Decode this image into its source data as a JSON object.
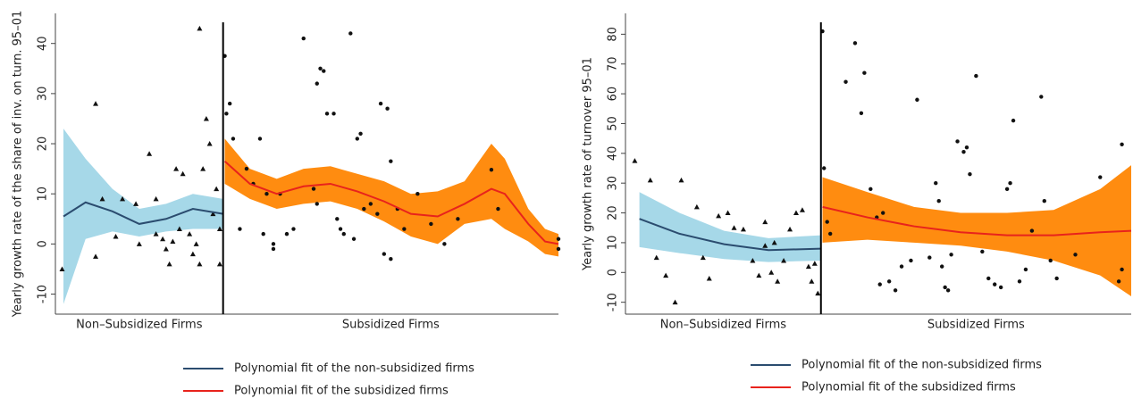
{
  "chart_data": [
    {
      "type": "scatter",
      "ylabel": "Yearly growth rate of the share of inv. on turn. 95–01",
      "xlim": [
        -50,
        100
      ],
      "ylim": [
        -14,
        46
      ],
      "yticks": [
        -10,
        0,
        10,
        20,
        30,
        40
      ],
      "cutoff": 0,
      "groups": [
        {
          "label": "Non–Subsidized Firms",
          "marker": "triangle",
          "points": {
            "x": [
              -48,
              -38,
              -36,
              -30,
              -26,
              -22,
              -38,
              -32,
              -25,
              -20,
              -18,
              -17,
              -16,
              -14,
              -12,
              -10,
              -8,
              -7,
              -9,
              -5,
              -6,
              -4,
              -3,
              -7,
              -2,
              -1,
              -1,
              -13,
              -15,
              -20
            ],
            "y": [
              -5,
              28,
              9,
              9,
              8,
              18,
              -2.5,
              1.5,
              0,
              2,
              1,
              -1,
              -4,
              15,
              14,
              2,
              0,
              -4,
              -2,
              25,
              15,
              20,
              6,
              43,
              11,
              3,
              -4,
              3,
              0.5,
              9
            ]
          },
          "fit": {
            "name": "Polynomial fit of the non-subsidized firms",
            "color": "#2b4c6f",
            "band_color": "#a6d8e8",
            "x": [
              -47.6,
              -41,
              -33,
              -25,
              -17,
              -9,
              0
            ],
            "values": [
              5.5,
              8.3,
              6.5,
              4,
              5,
              7,
              6
            ],
            "lower": [
              -12,
              1,
              2.5,
              1.5,
              2.5,
              3,
              3
            ],
            "upper": [
              23,
              17,
              11,
              7,
              8,
              10,
              9
            ]
          }
        },
        {
          "label": "Subsidized Firms",
          "marker": "dot",
          "points": {
            "x": [
              0.5,
              1,
              2,
              3,
              5,
              7,
              9,
              11,
              13,
              12,
              15,
              15,
              17,
              19,
              21,
              24,
              27,
              28,
              29,
              28,
              30,
              31,
              33,
              34,
              35,
              36,
              38,
              39,
              40,
              41,
              42,
              44,
              46,
              47,
              49,
              48,
              50,
              50,
              54,
              52,
              58,
              62,
              66,
              70,
              80,
              82,
              100,
              100
            ],
            "y": [
              37.5,
              26,
              28,
              21,
              3,
              15,
              12,
              21,
              10,
              2,
              0,
              -1,
              10,
              2,
              3,
              41,
              11,
              8,
              35,
              32,
              34.5,
              26,
              26,
              5,
              3,
              2,
              42,
              1,
              21,
              22,
              7,
              8,
              6,
              28,
              27,
              -2,
              -3,
              16.5,
              3,
              7,
              10,
              4,
              0,
              5,
              14.8,
              7,
              1,
              -1
            ]
          },
          "fit": {
            "name": "Polynomial fit of the subsidized firms",
            "color": "#e8231c",
            "band_color": "#ff8c10",
            "x": [
              0.5,
              8,
              16,
              24,
              32,
              40,
              48,
              56,
              64,
              72,
              80,
              84,
              91,
              96,
              100
            ],
            "values": [
              16.5,
              12,
              10,
              11.5,
              12,
              10.5,
              8.5,
              6,
              5.5,
              8,
              11,
              10,
              4,
              0.5,
              0
            ],
            "lower": [
              12,
              9,
              7,
              8,
              8.5,
              7,
              4.5,
              1.5,
              0,
              4,
              5,
              3,
              0.5,
              -2,
              -2.5
            ],
            "upper": [
              21,
              15,
              13,
              15,
              15.5,
              14,
              12.5,
              10,
              10.5,
              12.5,
              20,
              17,
              7,
              3,
              2
            ]
          }
        }
      ]
    },
    {
      "type": "scatter",
      "ylabel": "Yearly growth rate of turnover 95–01",
      "xlim": [
        -63,
        100
      ],
      "ylim": [
        -14,
        87
      ],
      "yticks": [
        -10,
        0,
        10,
        20,
        30,
        40,
        50,
        60,
        70,
        80
      ],
      "cutoff": 0,
      "groups": [
        {
          "label": "Non–Subsidized Firms",
          "marker": "triangle",
          "points": {
            "x": [
              -60,
              -55,
              -53,
              -50,
              -47,
              -45,
              -40,
              -38,
              -36,
              -33,
              -30,
              -28,
              -25,
              -22,
              -20,
              -18,
              -16,
              -15,
              -14,
              -12,
              -10,
              -8,
              -6,
              -4,
              -3,
              -2,
              -1,
              -18
            ],
            "y": [
              37.5,
              31,
              5,
              -1,
              -10,
              31,
              22,
              5,
              -2,
              19,
              20,
              15,
              14.5,
              4,
              -1,
              17,
              0,
              10,
              -3,
              4,
              14.5,
              20,
              21,
              2,
              -3,
              3,
              -7,
              9
            ]
          },
          "fit": {
            "name": "Polynomial fit of the non-subsidized firms",
            "color": "#2b4c6f",
            "band_color": "#a6d8e8",
            "x": [
              -58.5,
              -45.6,
              -31.2,
              -16.9,
              0
            ],
            "values": [
              18,
              13,
              9.5,
              7.5,
              8
            ],
            "lower": [
              8.5,
              6.5,
              4.5,
              3.5,
              4
            ],
            "upper": [
              27,
              20,
              14,
              11.5,
              12.5
            ]
          }
        },
        {
          "label": "Subsidized Firms",
          "marker": "dot",
          "points": {
            "x": [
              0.5,
              1,
              2,
              3,
              8,
              11,
              13,
              14,
              16,
              18,
              20,
              19,
              22,
              24,
              26,
              29,
              31,
              35,
              37,
              38,
              39,
              40,
              41,
              42,
              44,
              46,
              47,
              48,
              50,
              52,
              54,
              56,
              58,
              60,
              61,
              62,
              64,
              66,
              68,
              71,
              72,
              74,
              76,
              82,
              90,
              96,
              97,
              97
            ],
            "y": [
              81,
              35,
              17,
              13,
              64,
              77,
              53.5,
              67,
              28,
              18.5,
              20,
              -4,
              -3,
              -6,
              2,
              4,
              58,
              5,
              30,
              24,
              2,
              -5,
              -6,
              6,
              44,
              40.5,
              42,
              33,
              66,
              7,
              -2,
              -4,
              -5,
              28,
              30,
              51,
              -3,
              1,
              14,
              59,
              24,
              4,
              -2,
              6,
              32,
              -3,
              43,
              1
            ]
          },
          "fit": {
            "name": "Polynomial fit of the subsidized firms",
            "color": "#e8231c",
            "band_color": "#ff8c10",
            "x": [
              0.5,
              15,
              30,
              45,
              60,
              75,
              90,
              100
            ],
            "values": [
              22,
              18.5,
              15.5,
              13.5,
              12.5,
              12.5,
              13.5,
              14
            ],
            "lower": [
              10,
              11,
              10,
              9,
              7,
              4,
              -1,
              -8
            ],
            "upper": [
              32,
              27,
              22,
              20,
              20,
              21,
              28,
              36
            ]
          }
        }
      ]
    }
  ]
}
